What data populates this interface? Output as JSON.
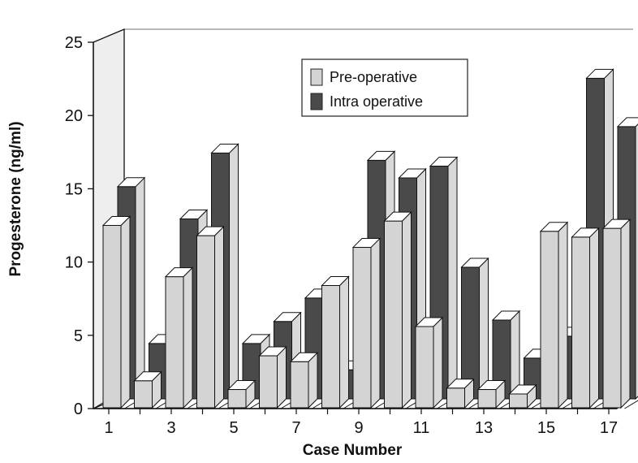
{
  "chart_data": {
    "type": "bar",
    "style": "3d-clustered",
    "xlabel": "Case Number",
    "ylabel": "Progesterone (ng/ml)",
    "ylim": [
      0,
      25
    ],
    "yticks": [
      "0",
      "5",
      "10",
      "15",
      "20",
      "25"
    ],
    "xticks": [
      "1",
      "3",
      "5",
      "7",
      "9",
      "11",
      "13",
      "15",
      "17"
    ],
    "categories": [
      "1",
      "2",
      "3",
      "4",
      "5",
      "6",
      "7",
      "8",
      "9",
      "10",
      "11",
      "12",
      "13",
      "14",
      "15",
      "16",
      "17"
    ],
    "series": [
      {
        "name": "Pre-operative",
        "color": "#d4d4d4",
        "values": [
          12.5,
          1.9,
          9.0,
          11.8,
          1.3,
          3.6,
          3.2,
          8.4,
          11.0,
          12.8,
          5.6,
          1.4,
          1.3,
          1.0,
          12.1,
          11.7,
          12.3
        ]
      },
      {
        "name": "Intra operative",
        "color": "#4a4a4a",
        "values": [
          14.7,
          4.0,
          12.5,
          17.0,
          4.0,
          5.5,
          7.1,
          2.2,
          16.5,
          15.3,
          16.1,
          9.2,
          5.6,
          3.0,
          4.5,
          22.1,
          18.8
        ]
      }
    ],
    "legend_position": "top-center",
    "grid": false
  }
}
